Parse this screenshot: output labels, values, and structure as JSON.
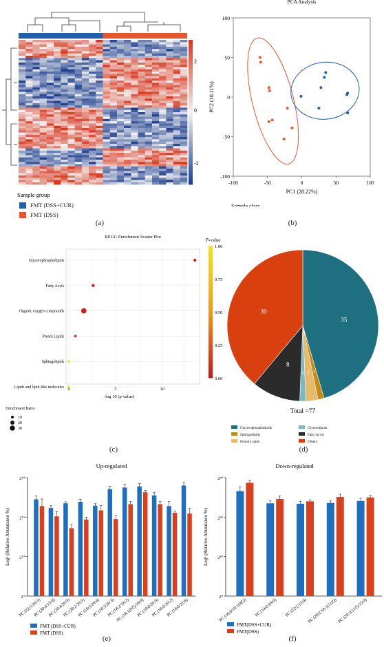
{
  "panels": {
    "a": "(a)",
    "b": "(b)",
    "c": "(c)",
    "d": "(d)",
    "e": "(e)",
    "f": "(f)"
  },
  "heatmap": {
    "legend_title": "Sample group",
    "groups": [
      {
        "label": "FMT (DSS+CUR)",
        "color": "#1f5fb0"
      },
      {
        "label": "FMT (DSS)",
        "color": "#e8572a"
      }
    ],
    "colorbar_ticks": [
      "2",
      "0",
      "-2"
    ],
    "colors": {
      "low": "#1d3f8f",
      "mid": "#f2f2f2",
      "high": "#d9381e"
    }
  },
  "chart_data": [
    {
      "type": "scatter",
      "title": "PCA Analysis",
      "xlabel": "PC1 (28.22%)",
      "ylabel": "PC2 (10.11%)",
      "xlim": [
        -100,
        100
      ],
      "ylim": [
        -100,
        100
      ],
      "xticks": [
        "-100",
        "-50",
        "0",
        "50",
        "100"
      ],
      "yticks": [
        "100",
        "50",
        "0",
        "-50",
        "-100"
      ],
      "legend_title": "Sample class",
      "series": [
        {
          "name": "FMT (DSS+CUR)",
          "color": "#1f5fb0",
          "points": [
            [
              35,
              31
            ],
            [
              33,
              25
            ],
            [
              -1,
              1
            ],
            [
              28,
              12
            ],
            [
              25,
              -14
            ],
            [
              66,
              3
            ],
            [
              67,
              5
            ],
            [
              67,
              -20
            ]
          ]
        },
        {
          "name": "FMT (DSS)",
          "color": "#e8572a",
          "points": [
            [
              -61,
              50
            ],
            [
              -60,
              44
            ],
            [
              -48,
              12
            ],
            [
              -47,
              8
            ],
            [
              -21,
              -14
            ],
            [
              -48,
              -31
            ],
            [
              -43,
              -29
            ],
            [
              -14,
              -39
            ],
            [
              -26,
              -53
            ]
          ]
        }
      ]
    },
    {
      "type": "scatter",
      "title": "KEGG Enrichment Scatter Plot",
      "xlabel": "-log 10 (p-value)",
      "xticks": [
        "0",
        "5",
        "10"
      ],
      "xlim": [
        -0.3,
        14
      ],
      "categories": [
        "Glycerophospholipids",
        "Fatty Acyls",
        "Organic oxygen compounds",
        "Prenol Lipids",
        "Sphingolipids",
        "Lipids and lipid-like molecules"
      ],
      "x": [
        13.5,
        2.6,
        1.6,
        0.7,
        0.0,
        0.0
      ],
      "pvalue": [
        0.0,
        0.05,
        0.02,
        0.08,
        0.95,
        1.0
      ],
      "enrichment_ratio": [
        10,
        12,
        30,
        8,
        6,
        6
      ],
      "colorbar_title": "P-value",
      "colorbar_ticks": [
        "1.00",
        "0.75",
        "0.50",
        "0.25",
        "0.00"
      ],
      "size_legend_title": "Enrichment Ratio",
      "size_legend": [
        10,
        20,
        30
      ]
    },
    {
      "type": "pie",
      "total_label": "Total =77",
      "slices": [
        {
          "label": "Glycerophospholipids",
          "value": 35,
          "color": "#1e6f80",
          "show": "35"
        },
        {
          "label": "Sphingolipids",
          "value": 1,
          "color": "#c48a12",
          "show": "1"
        },
        {
          "label": "Prenol Lipids",
          "value": 2,
          "color": "#e6b96c",
          "show": "2"
        },
        {
          "label": "Glycerolipids",
          "value": 1,
          "color": "#7ab8c4",
          "show": "1"
        },
        {
          "label": "Fatty Acyls",
          "value": 8,
          "color": "#2b2b2b",
          "show": "8"
        },
        {
          "label": "Others",
          "value": 30,
          "color": "#d9400f",
          "show": "30"
        }
      ],
      "legend_order": [
        "Glycerophospholipids",
        "Glycerolipids",
        "Sphingolipids",
        "Fatty Acyls",
        "Prenol Lipids",
        "Others"
      ]
    },
    {
      "type": "bar",
      "title": "Up-regulated",
      "ylabel": "Log² (Relative Abundance %)",
      "yticks": [
        "2³⁰",
        "2²⁰",
        "2¹⁰",
        "2⁰"
      ],
      "ylim": [
        0,
        30
      ],
      "categories": [
        "PC (22:5/20:5)",
        "PC (20:4/15:0)",
        "PC (20:4/20:5)",
        "PC (20:2/20:5)",
        "PC (18:3/20:4)",
        "PC (18:3/20:3)",
        "PC (18:2/18:2)",
        "PC (18:1(9Z)/18:0)",
        "PC (18:0/20:5)",
        "PC (18:0/20:2)",
        "PC (16:0/22:6)"
      ],
      "series": [
        {
          "name": "FMT (DSS+CUR)",
          "color": "#1f6fc0",
          "values": [
            24.5,
            22.3,
            23.5,
            23.9,
            22.9,
            27.1,
            27.5,
            27.8,
            25.5,
            22.8,
            28.0
          ],
          "errors": [
            0.9,
            0.6,
            0.4,
            0.6,
            0.5,
            0.7,
            0.8,
            0.7,
            0.7,
            1.2,
            0.8
          ]
        },
        {
          "name": "FMT (DSS)",
          "color": "#d9401e",
          "values": [
            22.8,
            20.2,
            17.2,
            19.4,
            21.7,
            19.5,
            23.3,
            26.3,
            23.3,
            21.1,
            20.9
          ],
          "errors": [
            1.8,
            1.2,
            0.9,
            0.6,
            1.2,
            0.9,
            0.7,
            0.5,
            0.7,
            0.4,
            1.3
          ]
        }
      ]
    },
    {
      "type": "bar",
      "title": "Down-regulated",
      "ylabel": "Log² (Relative Abundance %)",
      "yticks": [
        "2³⁰",
        "2²⁰",
        "2¹⁰",
        "2⁰"
      ],
      "ylim": [
        0,
        30
      ],
      "categories": [
        "PC (16:0/18:1(9Z))",
        "PC (14:0/20:0)",
        "PC (22:2/15:0)",
        "PC (20:2/18:1(11Z))",
        "PC (20:1(11Z)/15:0)"
      ],
      "series": [
        {
          "name": "FMT(DSS+CUR)",
          "color": "#1f6fc0",
          "values": [
            26.6,
            23.5,
            23.4,
            23.6,
            24.1
          ],
          "errors": [
            1.1,
            0.6,
            0.6,
            0.5,
            0.7
          ]
        },
        {
          "name": "FMT(DSS)",
          "color": "#d9401e",
          "values": [
            28.7,
            24.6,
            24.0,
            25.1,
            25.0
          ],
          "errors": [
            0.6,
            0.8,
            0.4,
            0.7,
            0.5
          ]
        }
      ]
    }
  ]
}
